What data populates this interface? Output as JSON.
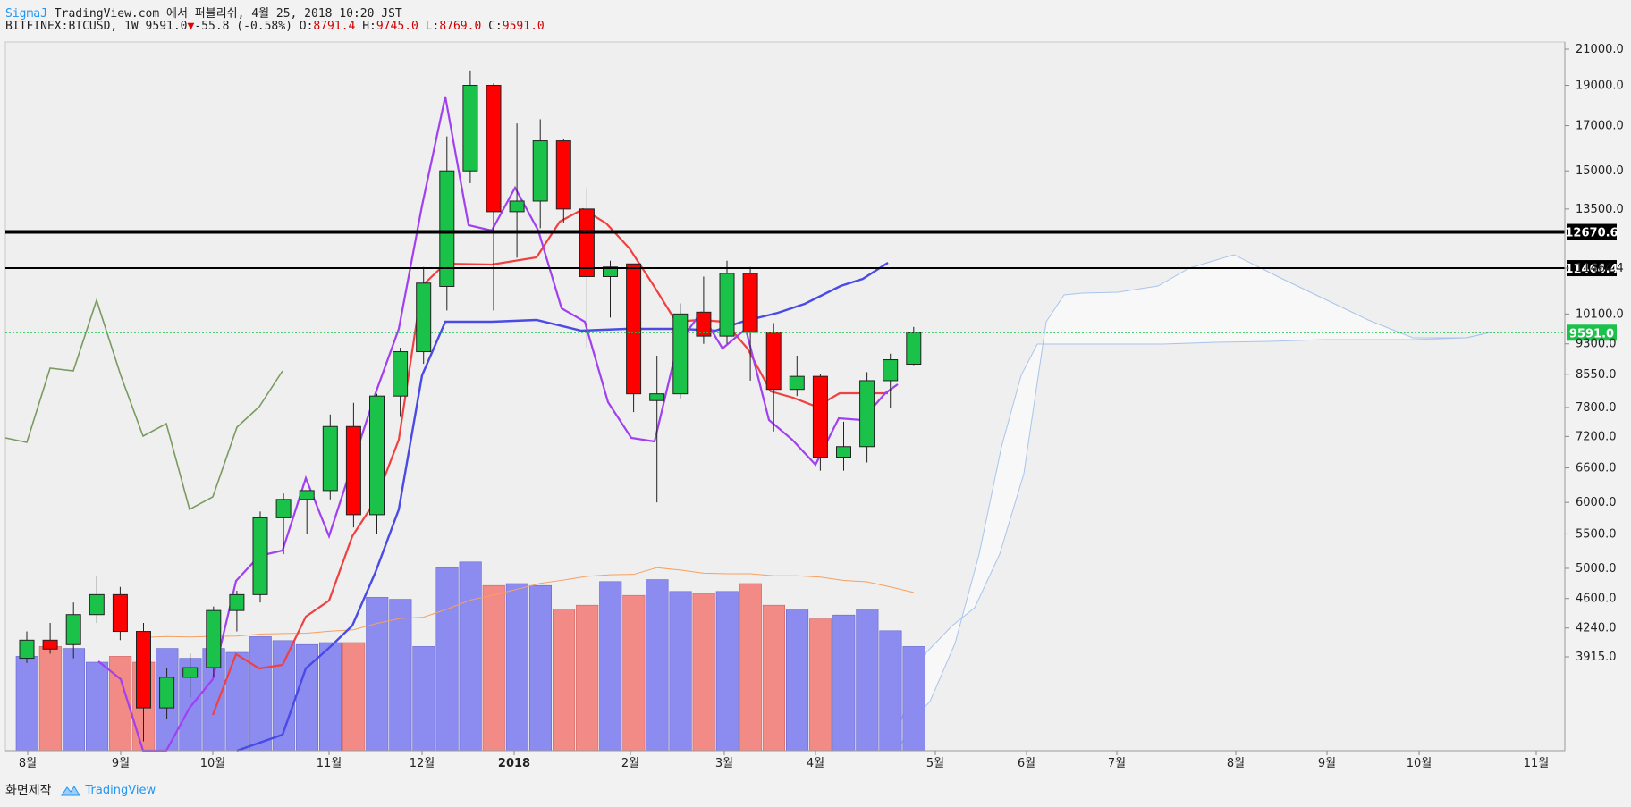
{
  "header": {
    "author": "SigmaJ",
    "publish_line": "TradingView.com 에서 퍼블리쉬, 4월 25, 2018 10:20 JST",
    "symbol": "BITFINEX:BTCUSD, 1W",
    "last": "9591.0",
    "change": "-55.8 (-0.58%)",
    "o_label": "O:",
    "o_val": "8791.4",
    "h_label": "H:",
    "h_val": "9745.0",
    "l_label": "L:",
    "l_val": "8769.0",
    "c_label": "C:",
    "c_val": "9591.0"
  },
  "footer": {
    "made_label": "화면제작",
    "brand": "TradingView"
  },
  "colors": {
    "up": "#1ac24a",
    "down": "#ff0000",
    "vol_up": "#8c8cf0",
    "vol_down": "#f28b86",
    "red_line": "#f04040",
    "blue_line": "#4a4ae6",
    "purple_line": "#a040f0",
    "lag_line": "#7a9a60",
    "vol_ma": "#f5a060",
    "cloud_edge": "#a8c4ec"
  },
  "chart_data": {
    "type": "candlestick",
    "price_ticks": [
      "21000.0",
      "19000.0",
      "17000.0",
      "15000.0",
      "13500.0",
      "11464.4",
      "10100.0",
      "9300.0",
      "8550.0",
      "7800.0",
      "7200.0",
      "6600.0",
      "6000.0",
      "5500.0",
      "5000.0",
      "4600.0",
      "4240.0",
      "3915.0"
    ],
    "x_ticks": [
      "8월",
      "9월",
      "10월",
      "11월",
      "12월",
      "2018",
      "2월",
      "3월",
      "4월",
      "5월",
      "6월",
      "7월",
      "8월",
      "9월",
      "10월",
      "11월"
    ],
    "price_labels": [
      {
        "value": "12670.6",
        "kind": "level"
      },
      {
        "value": "11464.4",
        "kind": "level"
      },
      {
        "value": "9591.0",
        "kind": "last"
      }
    ],
    "candles": [
      {
        "o": 3900,
        "h": 4200,
        "l": 3850,
        "c": 4100
      },
      {
        "o": 4100,
        "h": 4300,
        "l": 3950,
        "c": 4000
      },
      {
        "o": 4050,
        "h": 4550,
        "l": 3900,
        "c": 4400
      },
      {
        "o": 4400,
        "h": 4900,
        "l": 4300,
        "c": 4650
      },
      {
        "o": 4650,
        "h": 4750,
        "l": 4100,
        "c": 4200
      },
      {
        "o": 4200,
        "h": 4300,
        "l": 3100,
        "c": 3400
      },
      {
        "o": 3400,
        "h": 3800,
        "l": 3300,
        "c": 3700
      },
      {
        "o": 3700,
        "h": 3950,
        "l": 3500,
        "c": 3800
      },
      {
        "o": 3800,
        "h": 4500,
        "l": 3700,
        "c": 4450
      },
      {
        "o": 4450,
        "h": 4700,
        "l": 4200,
        "c": 4650
      },
      {
        "o": 4650,
        "h": 5850,
        "l": 4550,
        "c": 5750
      },
      {
        "o": 5750,
        "h": 6150,
        "l": 5200,
        "c": 6050
      },
      {
        "o": 6050,
        "h": 6200,
        "l": 5500,
        "c": 6200
      },
      {
        "o": 6200,
        "h": 7650,
        "l": 6050,
        "c": 7400
      },
      {
        "o": 7400,
        "h": 7900,
        "l": 5600,
        "c": 5800
      },
      {
        "o": 5800,
        "h": 8100,
        "l": 5500,
        "c": 8050
      },
      {
        "o": 8050,
        "h": 9200,
        "l": 7600,
        "c": 9100
      },
      {
        "o": 9100,
        "h": 11500,
        "l": 8800,
        "c": 11000
      },
      {
        "o": 10900,
        "h": 16500,
        "l": 10200,
        "c": 15000
      },
      {
        "o": 15000,
        "h": 19800,
        "l": 14500,
        "c": 19000
      },
      {
        "o": 19000,
        "h": 19100,
        "l": 10200,
        "c": 13400
      },
      {
        "o": 13400,
        "h": 17100,
        "l": 11800,
        "c": 13800
      },
      {
        "o": 13800,
        "h": 17300,
        "l": 12800,
        "c": 16300
      },
      {
        "o": 16300,
        "h": 16400,
        "l": 13000,
        "c": 13500
      },
      {
        "o": 13500,
        "h": 14300,
        "l": 9200,
        "c": 11200
      },
      {
        "o": 11200,
        "h": 11700,
        "l": 10000,
        "c": 11500
      },
      {
        "o": 11600,
        "h": 11600,
        "l": 7700,
        "c": 8100
      },
      {
        "o": 7950,
        "h": 9000,
        "l": 6000,
        "c": 8100
      },
      {
        "o": 8100,
        "h": 10400,
        "l": 8000,
        "c": 10100
      },
      {
        "o": 10150,
        "h": 11200,
        "l": 9300,
        "c": 9500
      },
      {
        "o": 9500,
        "h": 11700,
        "l": 9300,
        "c": 11300
      },
      {
        "o": 11300,
        "h": 11500,
        "l": 8400,
        "c": 9600
      },
      {
        "o": 9600,
        "h": 9850,
        "l": 7300,
        "c": 8200
      },
      {
        "o": 8200,
        "h": 9000,
        "l": 8050,
        "c": 8500
      },
      {
        "o": 8500,
        "h": 8550,
        "l": 6550,
        "c": 6800
      },
      {
        "o": 6800,
        "h": 7500,
        "l": 6550,
        "c": 7000
      },
      {
        "o": 7000,
        "h": 8600,
        "l": 6700,
        "c": 8400
      },
      {
        "o": 8400,
        "h": 9050,
        "l": 7800,
        "c": 8900
      },
      {
        "o": 8791.4,
        "h": 9745,
        "l": 8769,
        "c": 9591
      }
    ],
    "volume": [
      48,
      53,
      52,
      45,
      48,
      45,
      52,
      47,
      52,
      50,
      58,
      56,
      54,
      55,
      55,
      78,
      77,
      53,
      93,
      96,
      84,
      85,
      84,
      72,
      74,
      86,
      79,
      87,
      81,
      80,
      81,
      85,
      74,
      72,
      67,
      69,
      72,
      61,
      53
    ],
    "horizontal_levels": [
      12670.6,
      11464.4
    ],
    "last_price": 9591.0
  }
}
